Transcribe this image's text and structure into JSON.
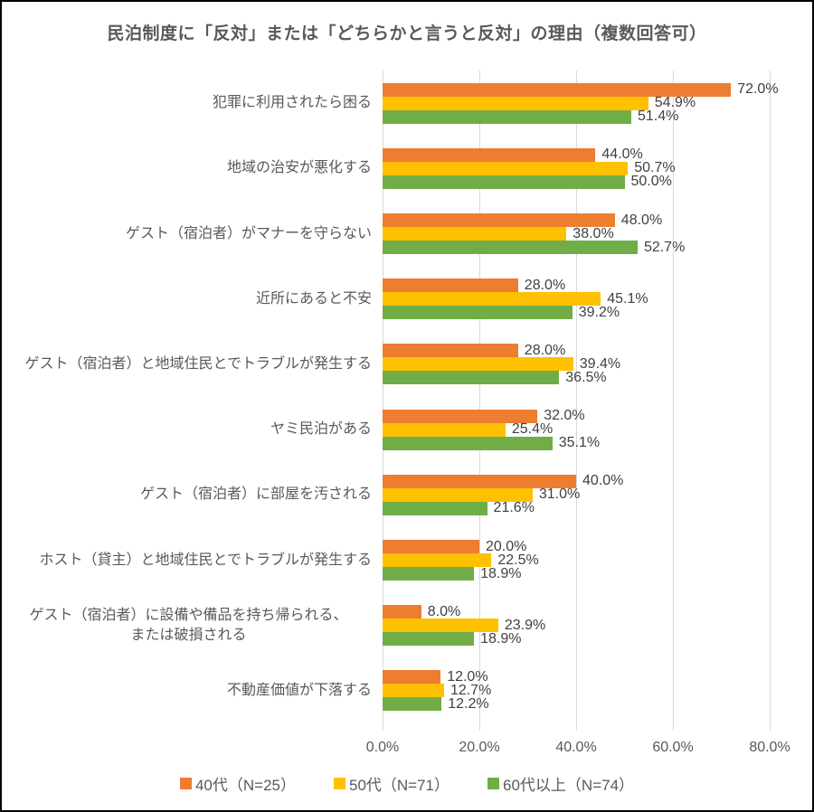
{
  "title": "民泊制度に「反対」または「どちらかと言うと反対」の理由（複数回答可）",
  "chart_data": {
    "type": "bar",
    "orientation": "horizontal",
    "title": "民泊制度に「反対」または「どちらかと言うと反対」の理由（複数回答可）",
    "categories": [
      "犯罪に利用されたら困る",
      "地域の治安が悪化する",
      "ゲスト（宿泊者）がマナーを守らない",
      "近所にあると不安",
      "ゲスト（宿泊者）と地域住民とでトラブルが発生する",
      "ヤミ民泊がある",
      "ゲスト（宿泊者）に部屋を汚される",
      "ホスト（貸主）と地域住民とでトラブルが発生する",
      "ゲスト（宿泊者）に設備や備品を持ち帰られる、\nまたは破損される",
      "不動産価値が下落する"
    ],
    "series": [
      {
        "name": "40代（N=25）",
        "color": "#ED7D31",
        "values": [
          72.0,
          44.0,
          48.0,
          28.0,
          28.0,
          32.0,
          40.0,
          20.0,
          8.0,
          12.0
        ]
      },
      {
        "name": "50代（N=71）",
        "color": "#FFC000",
        "values": [
          54.9,
          50.7,
          38.0,
          45.1,
          39.4,
          25.4,
          31.0,
          22.5,
          23.9,
          12.7
        ]
      },
      {
        "name": "60代以上（N=74）",
        "color": "#70AD47",
        "values": [
          51.4,
          50.0,
          52.7,
          39.2,
          36.5,
          35.1,
          21.6,
          18.9,
          18.9,
          12.2
        ]
      }
    ],
    "x_axis": {
      "tick_labels": [
        "0.0%",
        "20.0%",
        "40.0%",
        "60.0%",
        "80.0%"
      ],
      "min": 0,
      "max": 80,
      "tick_step": 20,
      "unit": "%"
    },
    "grid": true,
    "legend_position": "bottom",
    "value_label_suffix": "%",
    "colors": {
      "title_text": "#595959",
      "axis_text": "#595959",
      "data_label_text": "#404040",
      "gridline": "#d9d9d9",
      "background": "#ffffff",
      "frame_border": "#000000"
    }
  }
}
